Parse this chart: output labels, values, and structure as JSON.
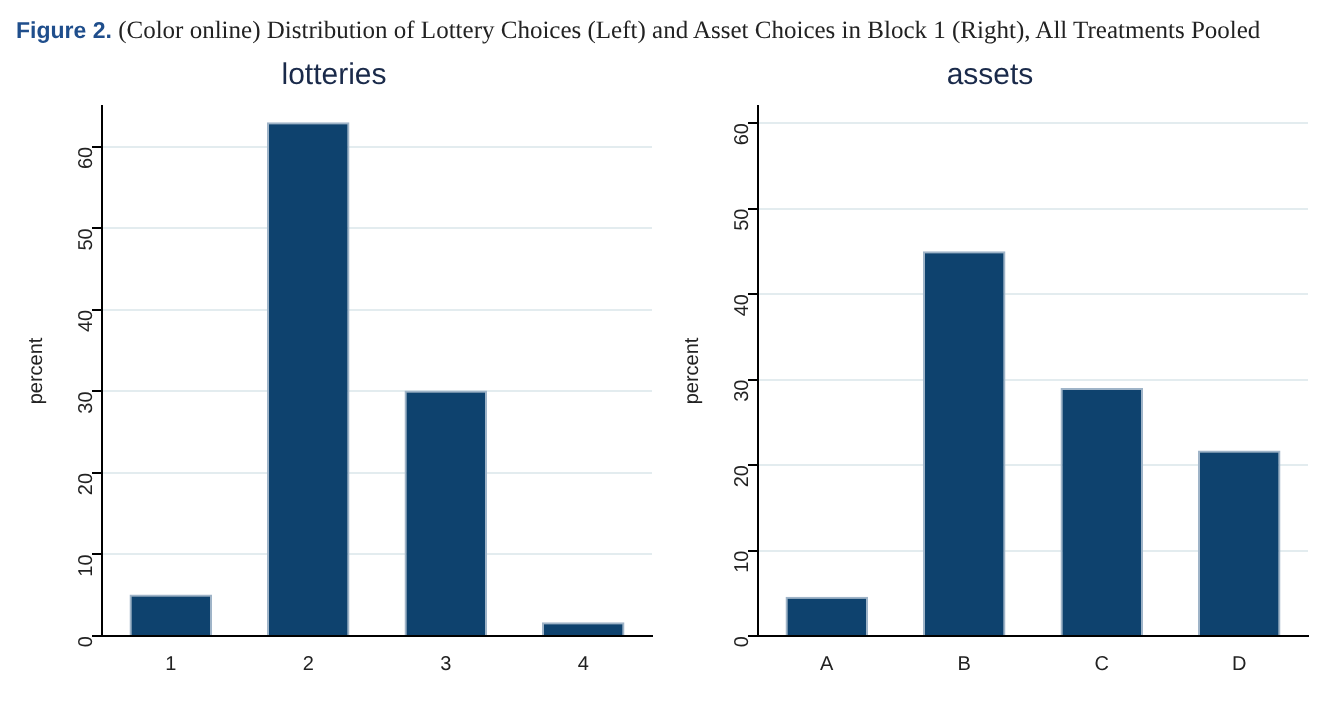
{
  "chart_data": [
    {
      "type": "bar",
      "title": "lotteries",
      "ylabel": "percent",
      "categories": [
        "1",
        "2",
        "3",
        "4"
      ],
      "values": [
        5.1,
        63.0,
        30.1,
        1.7
      ],
      "color": "#0e426e",
      "ylim": [
        0,
        65
      ],
      "yticks": [
        0,
        10,
        20,
        30,
        40,
        50,
        60
      ],
      "grid": "y",
      "annotations": [
        "Figure 2. (Color online) Distribution of Lottery Choices (Left) and Asset Choices in Block 1 (Right), All Treatments Pooled"
      ]
    },
    {
      "type": "bar",
      "title": "assets",
      "ylabel": "percent",
      "categories": [
        "A",
        "B",
        "C",
        "D"
      ],
      "values": [
        4.6,
        45.0,
        29.0,
        21.7
      ],
      "color": "#0e426e",
      "ylim": [
        0,
        62
      ],
      "yticks": [
        0,
        10,
        20,
        30,
        40,
        50,
        60
      ],
      "grid": "y"
    }
  ]
}
